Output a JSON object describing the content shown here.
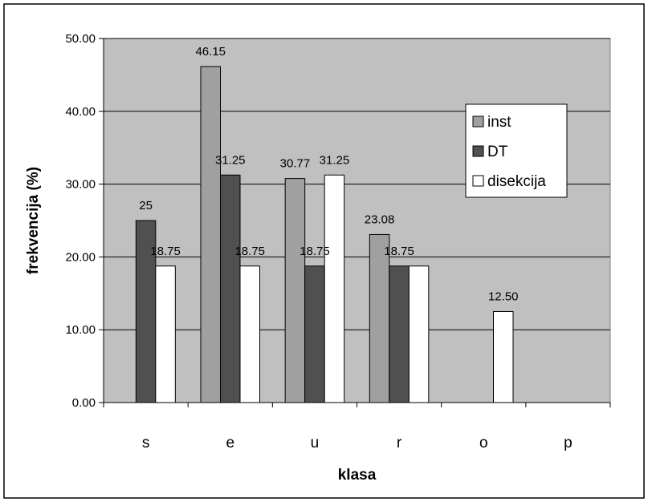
{
  "chart_data": {
    "type": "bar",
    "categories": [
      "s",
      "e",
      "u",
      "r",
      "o",
      "p"
    ],
    "series": [
      {
        "name": "inst",
        "values": [
          null,
          46.15,
          30.77,
          23.08,
          null,
          null
        ],
        "labels": [
          "",
          "46.15",
          "30.77",
          "23.08",
          "",
          ""
        ]
      },
      {
        "name": "DT",
        "values": [
          25,
          31.25,
          18.75,
          18.75,
          null,
          null
        ],
        "labels": [
          "25",
          "31.25",
          "18.75",
          "18.75",
          "",
          ""
        ]
      },
      {
        "name": "disekcija",
        "values": [
          18.75,
          18.75,
          31.25,
          18.75,
          12.5,
          null
        ],
        "labels": [
          "18.75",
          "18.75",
          "31.25",
          "",
          "12.50",
          ""
        ]
      }
    ],
    "xlabel": "klasa",
    "ylabel": "frekvencija (%)",
    "ylim": [
      0,
      50
    ],
    "yticks": [
      "0.00",
      "10.00",
      "20.00",
      "30.00",
      "40.00",
      "50.00"
    ],
    "grid": true,
    "legend_position": "upper-right",
    "colors": {
      "inst": "#a0a0a0",
      "DT": "#505050",
      "disekcija": "#ffffff",
      "plot_background": "#c0c0c0"
    }
  }
}
